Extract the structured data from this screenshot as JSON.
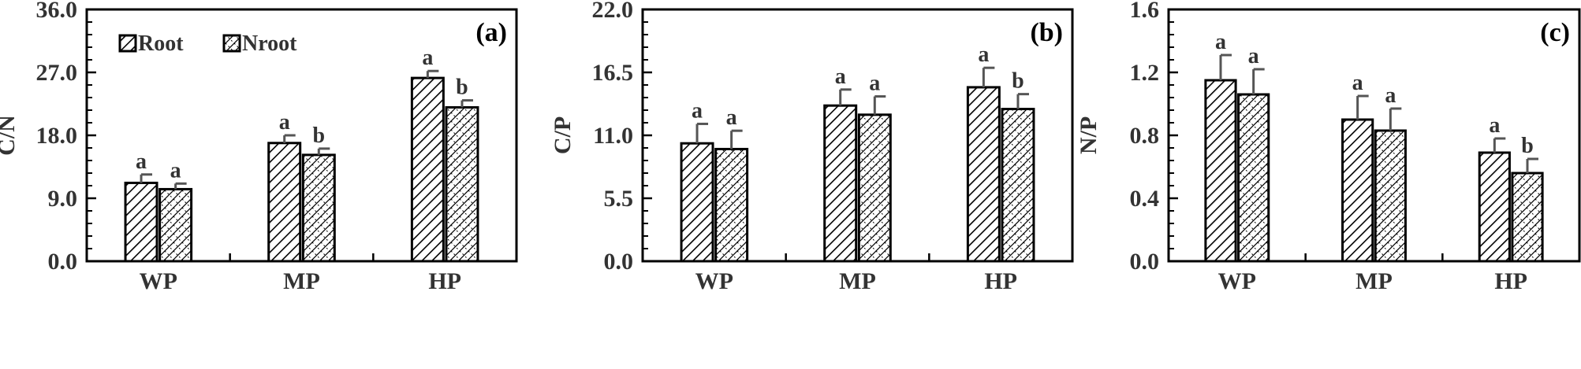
{
  "chart_data": [
    {
      "type": "bar",
      "panel_label": "(a)",
      "title": "",
      "xlabel": "",
      "ylabel": "C/N",
      "categories": [
        "WP",
        "MP",
        "HP"
      ],
      "ylim": [
        0,
        36
      ],
      "yticks": [
        "0.0",
        "9.0",
        "18.0",
        "27.0",
        "36.0"
      ],
      "legend": {
        "placement": "top-left",
        "entries": [
          "Root",
          "Nroot"
        ]
      },
      "series": [
        {
          "name": "Root",
          "values": [
            11.2,
            16.9,
            26.2
          ],
          "errors": [
            1.2,
            1.1,
            1.0
          ],
          "sig": [
            "a",
            "a",
            "a"
          ]
        },
        {
          "name": "Nroot",
          "values": [
            10.3,
            15.2,
            22.0
          ],
          "errors": [
            0.8,
            0.9,
            1.0
          ],
          "sig": [
            "a",
            "b",
            "b"
          ]
        }
      ]
    },
    {
      "type": "bar",
      "panel_label": "(b)",
      "title": "",
      "xlabel": "",
      "ylabel": "C/P",
      "categories": [
        "WP",
        "MP",
        "HP"
      ],
      "ylim": [
        0,
        22
      ],
      "yticks": [
        "0.0",
        "5.5",
        "11.0",
        "16.5",
        "22.0"
      ],
      "series": [
        {
          "name": "Root",
          "values": [
            10.3,
            13.6,
            15.2
          ],
          "errors": [
            1.7,
            1.4,
            1.7
          ],
          "sig": [
            "a",
            "a",
            "a"
          ]
        },
        {
          "name": "Nroot",
          "values": [
            9.8,
            12.8,
            13.3
          ],
          "errors": [
            1.6,
            1.6,
            1.3
          ],
          "sig": [
            "a",
            "a",
            "b"
          ]
        }
      ]
    },
    {
      "type": "bar",
      "panel_label": "(c)",
      "title": "",
      "xlabel": "",
      "ylabel": "N/P",
      "categories": [
        "WP",
        "MP",
        "HP"
      ],
      "ylim": [
        0,
        1.6
      ],
      "yticks": [
        "0.0",
        "0.4",
        "0.8",
        "1.2",
        "1.6"
      ],
      "series": [
        {
          "name": "Root",
          "values": [
            1.15,
            0.9,
            0.69
          ],
          "errors": [
            0.16,
            0.15,
            0.09
          ],
          "sig": [
            "a",
            "a",
            "a"
          ]
        },
        {
          "name": "Nroot",
          "values": [
            1.06,
            0.83,
            0.56
          ],
          "errors": [
            0.16,
            0.14,
            0.09
          ],
          "sig": [
            "a",
            "a",
            "b"
          ]
        }
      ]
    }
  ]
}
